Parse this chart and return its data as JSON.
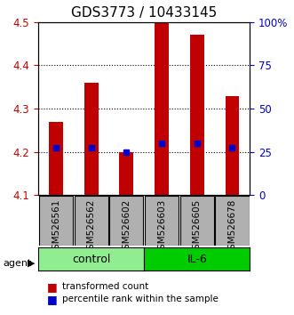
{
  "title": "GDS3773 / 10433145",
  "samples": [
    "GSM526561",
    "GSM526562",
    "GSM526602",
    "GSM526603",
    "GSM526605",
    "GSM526678"
  ],
  "bar_values": [
    4.27,
    4.36,
    4.2,
    4.5,
    4.47,
    4.33
  ],
  "bar_bottom": 4.1,
  "percentile_values": [
    4.21,
    4.21,
    4.2,
    4.22,
    4.22,
    4.21
  ],
  "ylim": [
    4.1,
    4.5
  ],
  "yticks_left": [
    4.1,
    4.2,
    4.3,
    4.4,
    4.5
  ],
  "yticks_right_vals": [
    4.1,
    4.2,
    4.3,
    4.4,
    4.5
  ],
  "yticks_right_labels": [
    "0",
    "25",
    "50",
    "75",
    "100%"
  ],
  "bar_color": "#c00000",
  "percentile_color": "#0000cc",
  "groups": [
    {
      "label": "control",
      "indices": [
        0,
        1,
        2
      ],
      "color": "#90ee90"
    },
    {
      "label": "IL-6",
      "indices": [
        3,
        4,
        5
      ],
      "color": "#00cc00"
    }
  ],
  "group_box_color": "#b0b0b0",
  "xlabel_agent": "agent",
  "legend_bar_label": "transformed count",
  "legend_pct_label": "percentile rank within the sample",
  "grid_color": "#000000",
  "title_fontsize": 11,
  "tick_fontsize": 8.5,
  "bar_width": 0.4
}
